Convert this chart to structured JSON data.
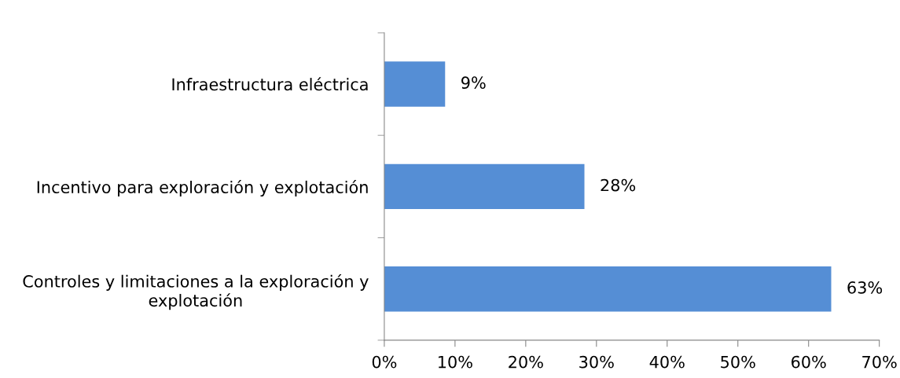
{
  "chart_data": {
    "type": "bar",
    "orientation": "horizontal",
    "categories": [
      "Infraestructura eléctrica",
      "Incentivo para exploración y explotación",
      "Controles y limitaciones a la exploración y\nexplotación"
    ],
    "values": [
      8.6,
      28.3,
      63.2
    ],
    "value_labels": [
      "9%",
      "28%",
      "63%"
    ],
    "color": "#558ed5",
    "xlim": [
      0,
      70
    ],
    "xticks": [
      {
        "value": 0,
        "label": "0%"
      },
      {
        "value": 10,
        "label": "10%"
      },
      {
        "value": 20,
        "label": "20%"
      },
      {
        "value": 30,
        "label": "30%"
      },
      {
        "value": 40,
        "label": "40%"
      },
      {
        "value": 50,
        "label": "50%"
      },
      {
        "value": 60,
        "label": "60%"
      },
      {
        "value": 70,
        "label": "70%"
      }
    ],
    "grid": false,
    "legend": false
  }
}
